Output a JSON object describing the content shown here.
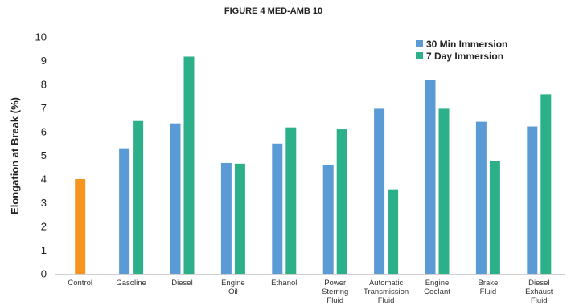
{
  "chart_data": {
    "type": "bar",
    "title": "FIGURE 4 MED-AMB 10",
    "xlabel": "",
    "ylabel": "Elongation at Break (%)",
    "ylim": [
      0,
      10
    ],
    "yticks": [
      0,
      1,
      2,
      3,
      4,
      5,
      6,
      7,
      8,
      9,
      10
    ],
    "grid": false,
    "legend_position": "top-right",
    "categories": [
      [
        "Control"
      ],
      [
        "Gasoline"
      ],
      [
        "Diesel"
      ],
      [
        "Engine",
        "Oil"
      ],
      [
        "Ethanol"
      ],
      [
        "Power",
        "Sterring",
        "Fluid"
      ],
      [
        "Automatic",
        "Transmission",
        "Fluid"
      ],
      [
        "Engine",
        "Coolant"
      ],
      [
        "Brake",
        "Fluid"
      ],
      [
        "Diesel",
        "Exhaust",
        "Fluid"
      ]
    ],
    "control": {
      "value": 4.0,
      "color": "#f7941d"
    },
    "series": [
      {
        "name": "30 Min Immersion",
        "color": "#5b9bd5",
        "values": [
          null,
          5.3,
          6.35,
          4.68,
          5.5,
          4.58,
          6.97,
          8.2,
          6.42,
          6.22
        ]
      },
      {
        "name": "7 Day Immersion",
        "color": "#2bb08a",
        "values": [
          null,
          6.45,
          9.17,
          4.65,
          6.18,
          6.1,
          3.57,
          6.97,
          4.75,
          7.58
        ]
      }
    ]
  }
}
